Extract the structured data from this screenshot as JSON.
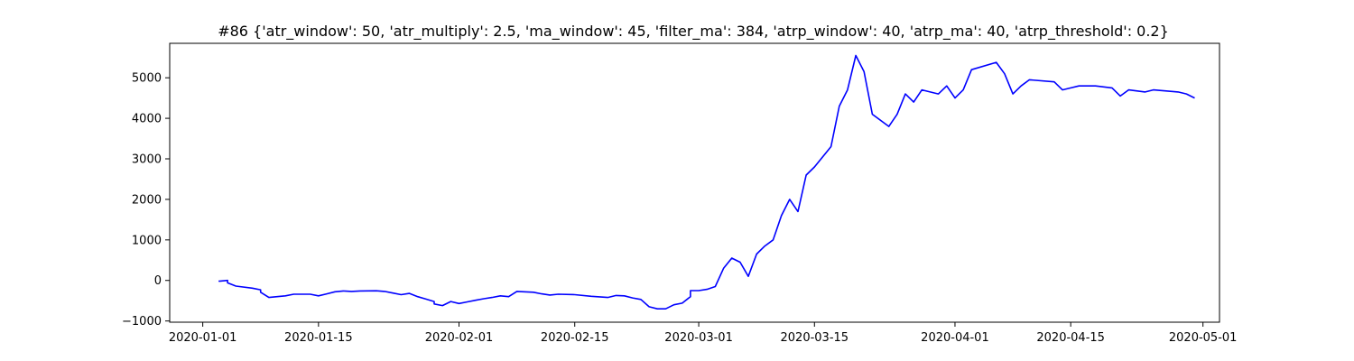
{
  "chart_data": {
    "type": "line",
    "title": "#86 {'atr_window': 50, 'atr_multiply': 2.5, 'ma_window': 45, 'filter_ma': 384, 'atrp_window': 40, 'atrp_ma': 40, 'atrp_threshold': 0.2}",
    "xlabel": "",
    "ylabel": "",
    "x_axis": "date",
    "xlim": [
      "2019-12-28",
      "2020-05-03"
    ],
    "ylim": [
      -1030,
      5850
    ],
    "grid": false,
    "x_ticks": [
      "2020-01-01",
      "2020-01-15",
      "2020-02-01",
      "2020-02-15",
      "2020-03-01",
      "2020-03-15",
      "2020-04-01",
      "2020-04-15",
      "2020-05-01"
    ],
    "y_ticks": [
      -1000,
      0,
      1000,
      2000,
      3000,
      4000,
      5000
    ],
    "series": [
      {
        "color": "#0000ff",
        "points": [
          [
            "2020-01-03",
            0
          ],
          [
            "2020-01-03",
            -20
          ],
          [
            "2020-01-04",
            0
          ],
          [
            "2020-01-04",
            -60
          ],
          [
            "2020-01-05",
            -140
          ],
          [
            "2020-01-07",
            -190
          ],
          [
            "2020-01-08",
            -230
          ],
          [
            "2020-01-08",
            -290
          ],
          [
            "2020-01-09",
            -420
          ],
          [
            "2020-01-10",
            -400
          ],
          [
            "2020-01-11",
            -380
          ],
          [
            "2020-01-12",
            -340
          ],
          [
            "2020-01-14",
            -340
          ],
          [
            "2020-01-15",
            -380
          ],
          [
            "2020-01-16",
            -330
          ],
          [
            "2020-01-17",
            -280
          ],
          [
            "2020-01-18",
            -260
          ],
          [
            "2020-01-19",
            -270
          ],
          [
            "2020-01-20",
            -260
          ],
          [
            "2020-01-22",
            -255
          ],
          [
            "2020-01-23",
            -270
          ],
          [
            "2020-01-24",
            -310
          ],
          [
            "2020-01-25",
            -350
          ],
          [
            "2020-01-26",
            -320
          ],
          [
            "2020-01-27",
            -400
          ],
          [
            "2020-01-28",
            -460
          ],
          [
            "2020-01-29",
            -520
          ],
          [
            "2020-01-29",
            -580
          ],
          [
            "2020-01-30",
            -620
          ],
          [
            "2020-01-31",
            -520
          ],
          [
            "2020-02-01",
            -570
          ],
          [
            "2020-02-02",
            -530
          ],
          [
            "2020-02-03",
            -490
          ],
          [
            "2020-02-04",
            -450
          ],
          [
            "2020-02-05",
            -420
          ],
          [
            "2020-02-06",
            -380
          ],
          [
            "2020-02-07",
            -400
          ],
          [
            "2020-02-08",
            -270
          ],
          [
            "2020-02-10",
            -290
          ],
          [
            "2020-02-11",
            -330
          ],
          [
            "2020-02-12",
            -360
          ],
          [
            "2020-02-13",
            -340
          ],
          [
            "2020-02-15",
            -350
          ],
          [
            "2020-02-17",
            -390
          ],
          [
            "2020-02-19",
            -420
          ],
          [
            "2020-02-20",
            -370
          ],
          [
            "2020-02-21",
            -380
          ],
          [
            "2020-02-22",
            -430
          ],
          [
            "2020-02-23",
            -470
          ],
          [
            "2020-02-24",
            -650
          ],
          [
            "2020-02-25",
            -700
          ],
          [
            "2020-02-26",
            -700
          ],
          [
            "2020-02-27",
            -600
          ],
          [
            "2020-02-28",
            -560
          ],
          [
            "2020-02-29",
            -400
          ],
          [
            "2020-02-29",
            -250
          ],
          [
            "2020-03-01",
            -250
          ],
          [
            "2020-03-02",
            -220
          ],
          [
            "2020-03-03",
            -150
          ],
          [
            "2020-03-04",
            300
          ],
          [
            "2020-03-05",
            550
          ],
          [
            "2020-03-06",
            450
          ],
          [
            "2020-03-07",
            100
          ],
          [
            "2020-03-08",
            650
          ],
          [
            "2020-03-09",
            850
          ],
          [
            "2020-03-10",
            1000
          ],
          [
            "2020-03-11",
            1600
          ],
          [
            "2020-03-12",
            2000
          ],
          [
            "2020-03-13",
            1700
          ],
          [
            "2020-03-14",
            2600
          ],
          [
            "2020-03-15",
            2800
          ],
          [
            "2020-03-17",
            3300
          ],
          [
            "2020-03-18",
            4300
          ],
          [
            "2020-03-19",
            4700
          ],
          [
            "2020-03-20",
            5550
          ],
          [
            "2020-03-21",
            5150
          ],
          [
            "2020-03-22",
            4100
          ],
          [
            "2020-03-24",
            3800
          ],
          [
            "2020-03-25",
            4100
          ],
          [
            "2020-03-26",
            4600
          ],
          [
            "2020-03-27",
            4400
          ],
          [
            "2020-03-28",
            4700
          ],
          [
            "2020-03-30",
            4600
          ],
          [
            "2020-03-31",
            4800
          ],
          [
            "2020-04-01",
            4500
          ],
          [
            "2020-04-02",
            4700
          ],
          [
            "2020-04-03",
            5200
          ],
          [
            "2020-04-06",
            5380
          ],
          [
            "2020-04-07",
            5100
          ],
          [
            "2020-04-08",
            4600
          ],
          [
            "2020-04-09",
            4800
          ],
          [
            "2020-04-10",
            4950
          ],
          [
            "2020-04-13",
            4900
          ],
          [
            "2020-04-14",
            4700
          ],
          [
            "2020-04-15",
            4750
          ],
          [
            "2020-04-16",
            4800
          ],
          [
            "2020-04-18",
            4800
          ],
          [
            "2020-04-20",
            4750
          ],
          [
            "2020-04-21",
            4550
          ],
          [
            "2020-04-22",
            4700
          ],
          [
            "2020-04-24",
            4650
          ],
          [
            "2020-04-25",
            4700
          ],
          [
            "2020-04-28",
            4650
          ],
          [
            "2020-04-29",
            4600
          ],
          [
            "2020-04-30",
            4500
          ]
        ]
      }
    ]
  }
}
